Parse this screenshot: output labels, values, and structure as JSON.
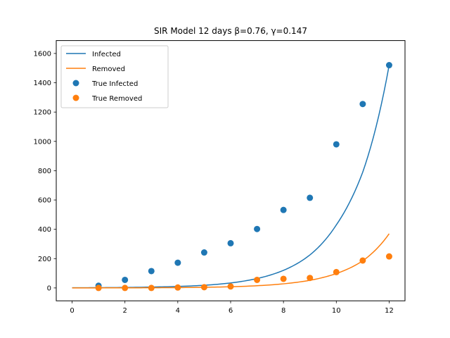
{
  "chart_data": {
    "type": "line",
    "title": "SIR Model 12 days β=0.76, γ=0.147",
    "xlabel": "",
    "ylabel": "",
    "xlim": [
      -0.6,
      12.6
    ],
    "ylim": [
      -88,
      1688
    ],
    "x_ticks": [
      0,
      2,
      4,
      6,
      8,
      10,
      12
    ],
    "y_ticks": [
      0,
      200,
      400,
      600,
      800,
      1000,
      1200,
      1400,
      1600
    ],
    "grid": false,
    "legend_position": "upper-left",
    "legend": [
      "Infected",
      "Removed",
      "True Infected",
      "True Removed"
    ],
    "lines": [
      {
        "name": "Infected",
        "color": "#1f77b4",
        "x": [
          0,
          1,
          2,
          3,
          4,
          5,
          6,
          7,
          8,
          9,
          10,
          11,
          12
        ],
        "y": [
          1,
          2,
          3,
          6,
          10,
          18,
          34,
          64,
          120,
          225,
          430,
          790,
          1520
        ]
      },
      {
        "name": "Removed",
        "color": "#ff7f0e",
        "x": [
          0,
          1,
          2,
          3,
          4,
          5,
          6,
          7,
          8,
          9,
          10,
          11,
          12
        ],
        "y": [
          0,
          0.3,
          0.6,
          1.2,
          2.3,
          4.3,
          8,
          15,
          28,
          52,
          98,
          185,
          370
        ]
      }
    ],
    "scatter": [
      {
        "name": "True Infected",
        "color": "#1f77b4",
        "x": [
          1,
          2,
          3,
          4,
          5,
          6,
          7,
          8,
          9,
          10,
          11,
          12
        ],
        "y": [
          15,
          55,
          115,
          172,
          242,
          305,
          402,
          532,
          615,
          980,
          1255,
          1520
        ]
      },
      {
        "name": "True Removed",
        "color": "#ff7f0e",
        "x": [
          1,
          2,
          3,
          4,
          5,
          6,
          7,
          8,
          9,
          10,
          11,
          12
        ],
        "y": [
          0,
          0,
          0,
          3,
          5,
          10,
          55,
          62,
          68,
          108,
          187,
          215
        ]
      }
    ]
  }
}
